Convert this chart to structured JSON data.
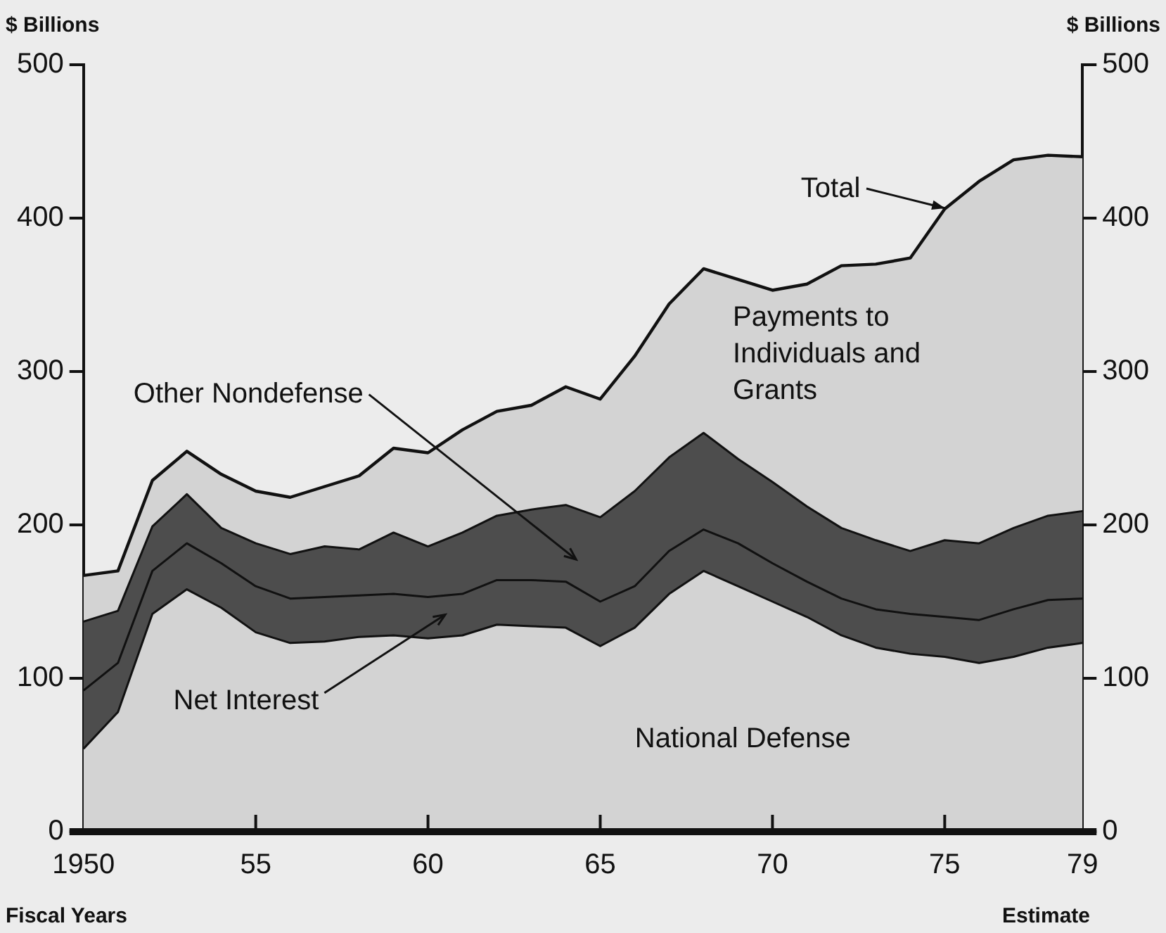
{
  "chart_data": {
    "type": "area",
    "stacked": true,
    "ylabel": "$ Billions",
    "y2label": "$ Billions",
    "xlabel": "Fiscal Years",
    "x": [
      1950,
      1951,
      1952,
      1953,
      1954,
      1955,
      1956,
      1957,
      1958,
      1959,
      1960,
      1961,
      1962,
      1963,
      1964,
      1965,
      1966,
      1967,
      1968,
      1969,
      1970,
      1971,
      1972,
      1973,
      1974,
      1975,
      1976,
      1977,
      1978,
      1979
    ],
    "series": [
      {
        "name": "National Defense",
        "color": "#d3d3d3",
        "values": [
          54,
          78,
          142,
          158,
          146,
          130,
          123,
          124,
          127,
          128,
          126,
          128,
          135,
          134,
          133,
          121,
          133,
          155,
          170,
          160,
          150,
          140,
          128,
          120,
          116,
          114,
          110,
          114,
          120,
          123
        ]
      },
      {
        "name": "Net Interest",
        "color": "#4d4d4d",
        "values": [
          38,
          32,
          28,
          30,
          29,
          30,
          29,
          29,
          27,
          27,
          27,
          27,
          29,
          30,
          30,
          29,
          27,
          28,
          27,
          28,
          25,
          23,
          24,
          25,
          26,
          26,
          28,
          31,
          31,
          29
        ]
      },
      {
        "name": "Other Nondefense",
        "color": "#4d4d4d",
        "values": [
          45,
          34,
          29,
          32,
          23,
          28,
          29,
          33,
          30,
          40,
          33,
          40,
          42,
          46,
          50,
          55,
          62,
          61,
          63,
          55,
          53,
          49,
          46,
          45,
          41,
          50,
          50,
          53,
          55,
          57
        ]
      },
      {
        "name": "Payments to Individuals and Grants",
        "color": "#d3d3d3",
        "values": [
          30,
          26,
          30,
          28,
          35,
          34,
          37,
          39,
          48,
          55,
          61,
          67,
          68,
          68,
          77,
          77,
          88,
          100,
          107,
          117,
          125,
          145,
          171,
          180,
          191,
          216,
          236,
          240,
          235,
          231
        ]
      }
    ],
    "xlim": [
      1950,
      1979
    ],
    "xticks": [
      1950,
      {
        "value": 1955,
        "label": "55"
      },
      {
        "value": 1960,
        "label": "60"
      },
      {
        "value": 1965,
        "label": "65"
      },
      {
        "value": 1970,
        "label": "70"
      },
      {
        "value": 1975,
        "label": "75"
      },
      {
        "value": 1979,
        "label": "79"
      }
    ],
    "ylim": [
      0,
      500
    ],
    "yticks": [
      0,
      100,
      200,
      300,
      400,
      500
    ],
    "y2lim": [
      0,
      500
    ],
    "y2ticks": [
      0,
      100,
      200,
      300,
      400,
      500
    ],
    "annotations": [
      {
        "text": "Total",
        "x": 1975,
        "y": 406
      },
      "Estimate"
    ],
    "legend": false,
    "grid": false,
    "marker": "none",
    "line_style": "solid"
  }
}
